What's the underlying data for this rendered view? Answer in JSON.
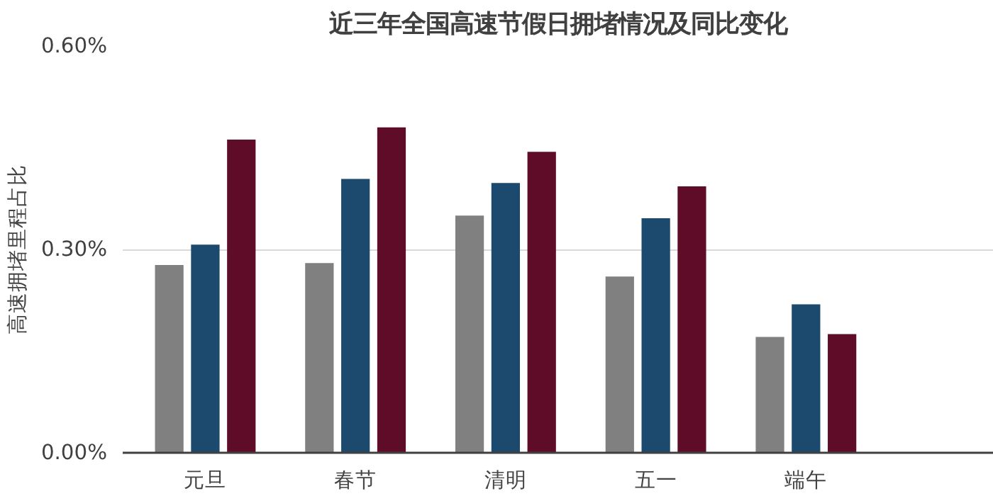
{
  "chart_data": {
    "type": "bar",
    "title": "近三年全国高速节假日拥堵情况及同比变化",
    "ylabel": "高速拥堵里程占比",
    "categories": [
      "元旦",
      "春节",
      "清明",
      "五一",
      "端午"
    ],
    "series": [
      {
        "color": "#808080",
        "values": [
          0.277,
          0.28,
          0.35,
          0.26,
          0.171
        ]
      },
      {
        "color": "#1b4a6e",
        "values": [
          0.307,
          0.404,
          0.398,
          0.346,
          0.219
        ]
      },
      {
        "color": "#5e0c28",
        "values": [
          0.462,
          0.48,
          0.444,
          0.393,
          0.175
        ]
      }
    ],
    "ylim": [
      0,
      0.6
    ],
    "yticks": [
      {
        "value": 0,
        "label": "0.00%"
      },
      {
        "value": 0.3,
        "label": "0.30%"
      },
      {
        "value": 0.6,
        "label": "0.60%"
      }
    ],
    "grid": "y"
  }
}
